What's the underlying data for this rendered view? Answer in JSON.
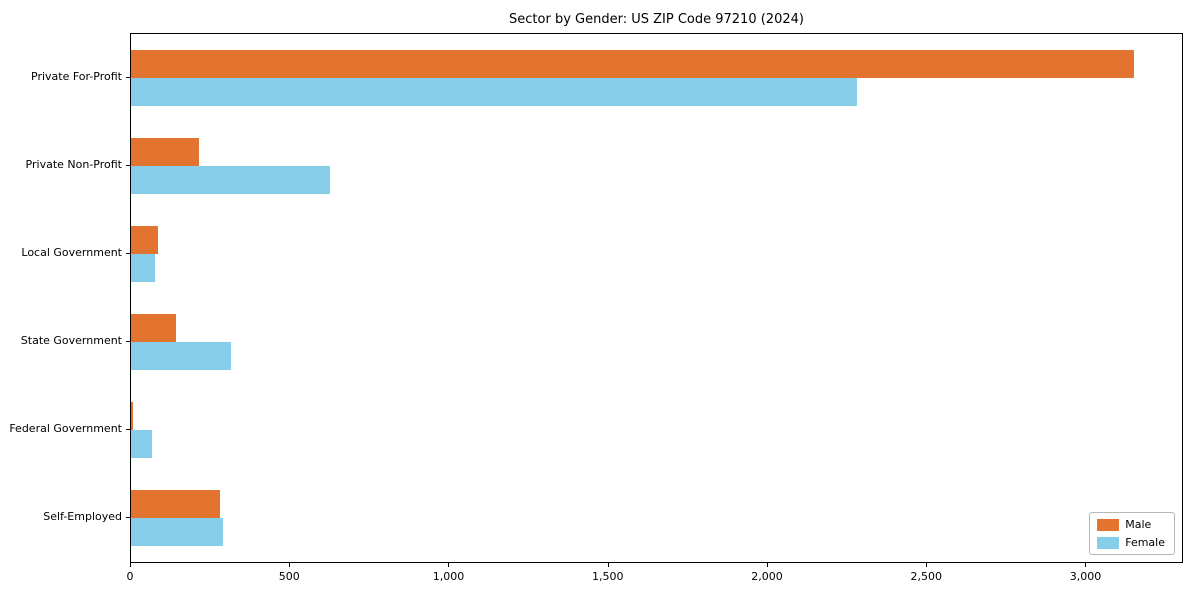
{
  "title": "Sector by Gender: US ZIP Code 97210 (2024)",
  "chart_data": {
    "type": "bar",
    "orientation": "horizontal",
    "title": "Sector by Gender: US ZIP Code 97210 (2024)",
    "categories": [
      "Private For-Profit",
      "Private Non-Profit",
      "Local Government",
      "State Government",
      "Federal Government",
      "Self-Employed"
    ],
    "series": [
      {
        "name": "Male",
        "color": "#e2742f",
        "values": [
          3150,
          215,
          85,
          140,
          6,
          280
        ]
      },
      {
        "name": "Female",
        "color": "#87ceeb",
        "values": [
          2280,
          625,
          75,
          315,
          65,
          290
        ]
      }
    ],
    "xlabel": "",
    "ylabel": "",
    "xlim": [
      0,
      3300
    ],
    "xticks": [
      0,
      500,
      1000,
      1500,
      2000,
      2500,
      3000
    ],
    "xtick_labels": [
      "0",
      "500",
      "1,000",
      "1,500",
      "2,000",
      "2,500",
      "3,000"
    ],
    "grid": false,
    "legend_position": "lower right"
  }
}
